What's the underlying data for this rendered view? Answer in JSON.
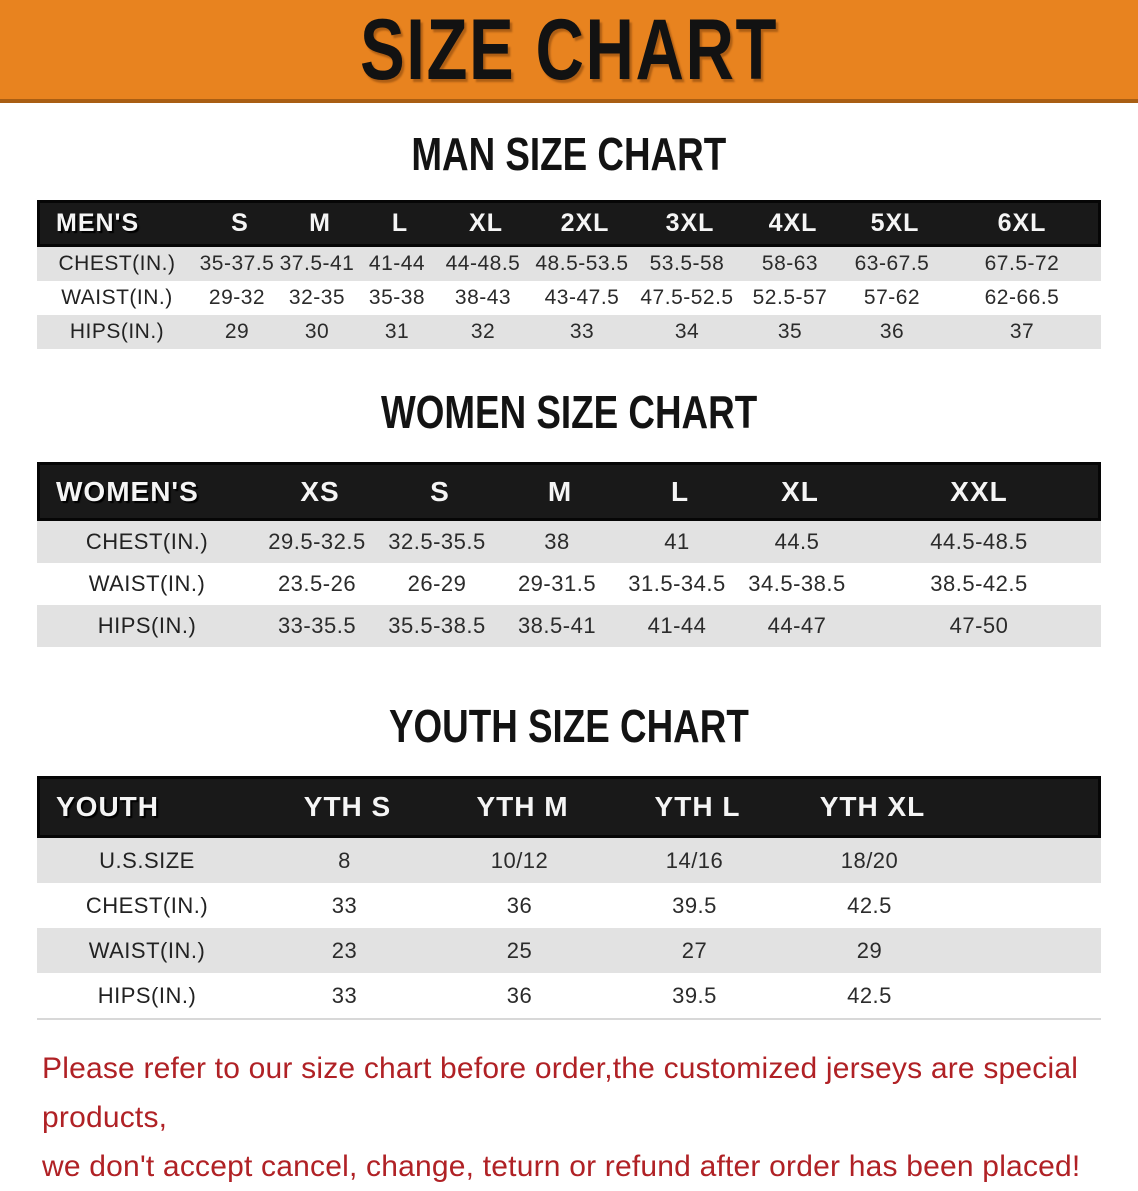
{
  "banner": {
    "title": "SIZE CHART",
    "bg_color": "#E8831F",
    "border_color": "#A95E13"
  },
  "colors": {
    "header_bg": "#191919",
    "row_alt": "#E2E2E2",
    "note_red": "#B02125"
  },
  "men": {
    "heading": "MAN SIZE CHART",
    "header": [
      "MEN'S",
      "S",
      "M",
      "L",
      "XL",
      "2XL",
      "3XL",
      "4XL",
      "5XL",
      "6XL"
    ],
    "rows": [
      {
        "label": "CHEST(IN.)",
        "values": [
          "35-37.5",
          "37.5-41",
          "41-44",
          "44-48.5",
          "48.5-53.5",
          "53.5-58",
          "58-63",
          "63-67.5",
          "67.5-72"
        ]
      },
      {
        "label": "WAIST(IN.)",
        "values": [
          "29-32",
          "32-35",
          "35-38",
          "38-43",
          "43-47.5",
          "47.5-52.5",
          "52.5-57",
          "57-62",
          "62-66.5"
        ]
      },
      {
        "label": "HIPS(IN.)",
        "values": [
          "29",
          "30",
          "31",
          "32",
          "33",
          "34",
          "35",
          "36",
          "37"
        ]
      }
    ]
  },
  "women": {
    "heading": "WOMEN SIZE CHART",
    "header": [
      "WOMEN'S",
      "XS",
      "S",
      "M",
      "L",
      "XL",
      "XXL"
    ],
    "rows": [
      {
        "label": "CHEST(IN.)",
        "values": [
          "29.5-32.5",
          "32.5-35.5",
          "38",
          "41",
          "44.5",
          "44.5-48.5"
        ]
      },
      {
        "label": "WAIST(IN.)",
        "values": [
          "23.5-26",
          "26-29",
          "29-31.5",
          "31.5-34.5",
          "34.5-38.5",
          "38.5-42.5"
        ]
      },
      {
        "label": "HIPS(IN.)",
        "values": [
          "33-35.5",
          "35.5-38.5",
          "38.5-41",
          "41-44",
          "44-47",
          "47-50"
        ]
      }
    ]
  },
  "youth": {
    "heading": "YOUTH SIZE CHART",
    "header": [
      "YOUTH",
      "YTH S",
      "YTH M",
      "YTH L",
      "YTH XL"
    ],
    "rows": [
      {
        "label": "U.S.SIZE",
        "values": [
          "8",
          "10/12",
          "14/16",
          "18/20"
        ]
      },
      {
        "label": "CHEST(IN.)",
        "values": [
          "33",
          "36",
          "39.5",
          "42.5"
        ]
      },
      {
        "label": "WAIST(IN.)",
        "values": [
          "23",
          "25",
          "27",
          "29"
        ]
      },
      {
        "label": "HIPS(IN.)",
        "values": [
          "33",
          "36",
          "39.5",
          "42.5"
        ]
      }
    ]
  },
  "note": {
    "lines": [
      "Please refer to our size chart before order,the customized jerseys are special products,",
      "we don't accept cancel, change, teturn or refund after order has been placed!"
    ]
  }
}
